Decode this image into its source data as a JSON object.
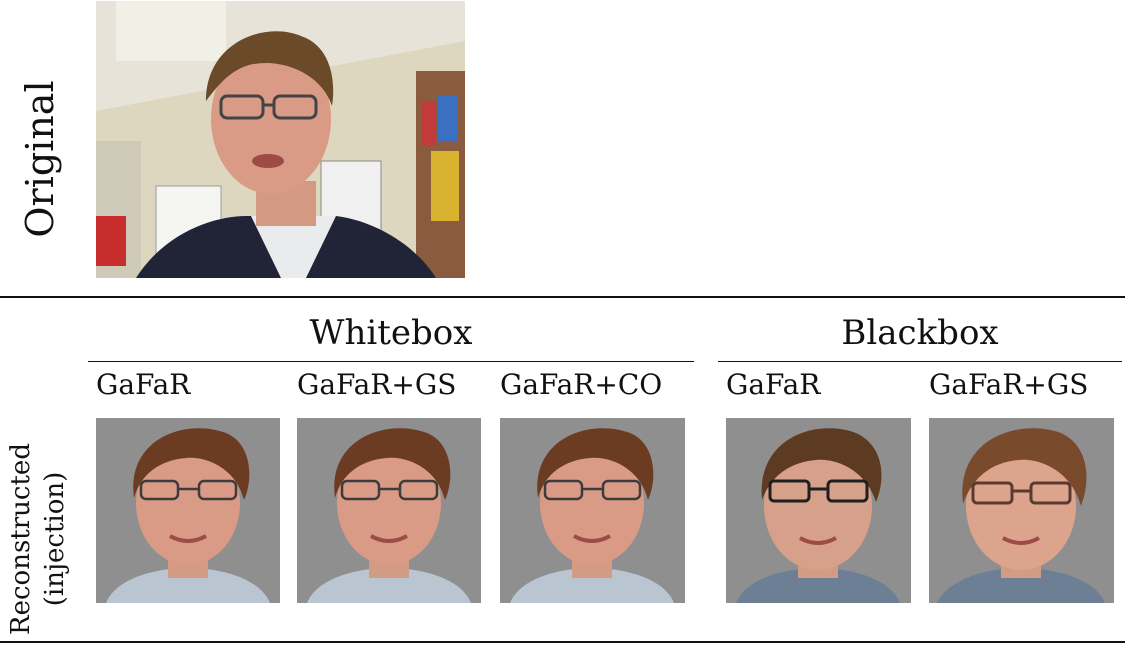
{
  "rows": {
    "original_label": "Original",
    "reconstructed_label_line1": "Reconstructed",
    "reconstructed_label_line2": "(injection)"
  },
  "groups": {
    "whitebox": "Whitebox",
    "blackbox": "Blackbox"
  },
  "methods": {
    "wb_1": "GaFaR",
    "wb_2": "GaFaR+GS",
    "wb_3": "GaFaR+CO",
    "bb_1": "GaFaR",
    "bb_2": "GaFaR+GS"
  },
  "colors": {
    "rule": "#111111",
    "skin": "#d99a86",
    "hair": "#6b3b22",
    "bg_gray": "#8f8f8f",
    "shirt_light": "#b9c6d2",
    "shirt_dark": "#6d7f95"
  }
}
